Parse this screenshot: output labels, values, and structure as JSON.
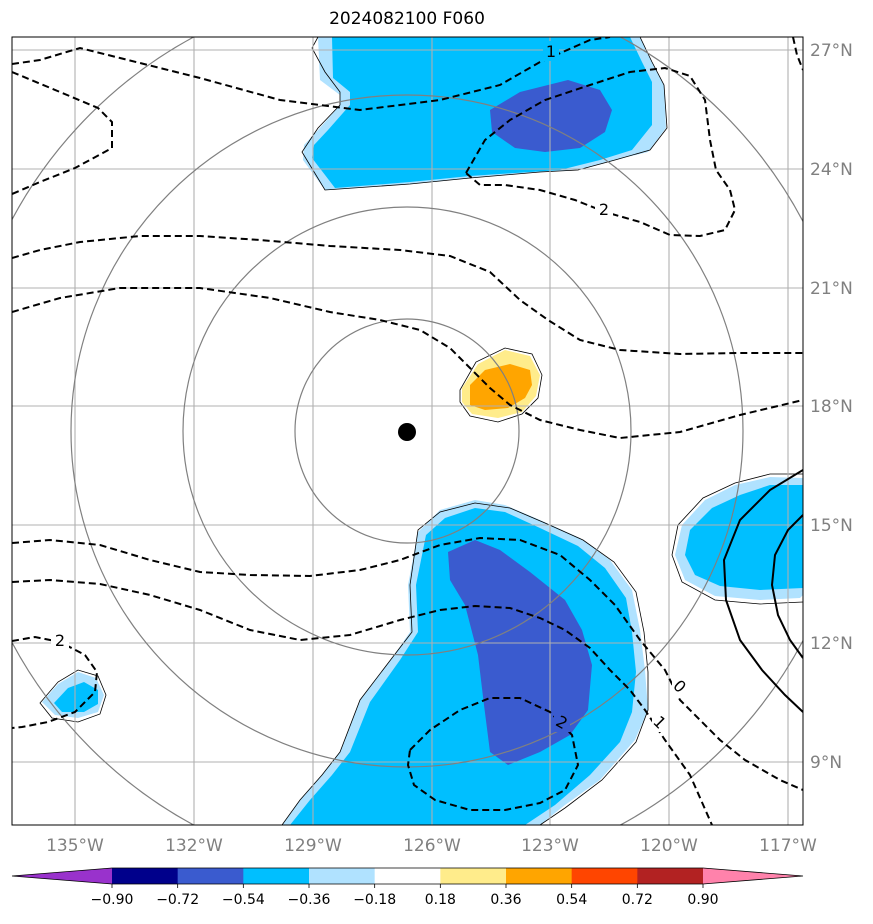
{
  "title": "2024082100 F060",
  "lon_labels": [
    "135°W",
    "132°W",
    "129°W",
    "126°W",
    "123°W",
    "120°W",
    "117°W"
  ],
  "lat_labels": [
    "27°N",
    "24°N",
    "21°N",
    "18°N",
    "15°N",
    "12°N",
    "9°N"
  ],
  "colorbar": {
    "labels": [
      "−0.90",
      "−0.72",
      "−0.54",
      "−0.36",
      "−0.18",
      "0.18",
      "0.36",
      "0.54",
      "0.72",
      "0.90"
    ],
    "colors": [
      "#9932cc",
      "#00008b",
      "#3a5bcf",
      "#00bfff",
      "#b0e2ff",
      "#ffffff",
      "#ffec8b",
      "#ffa500",
      "#ff4500",
      "#b22222",
      "#ff82ab"
    ]
  },
  "contour_labels": {
    "c1": "1",
    "c2": "2",
    "c3": "2",
    "c4": "0",
    "c5": "1",
    "c6": "2"
  },
  "colors": {
    "shade_light_blue": "#b0e2ff",
    "shade_blue": "#00bfff",
    "shade_dark_blue": "#3a5bcf",
    "shade_yellow": "#ffec8b",
    "shade_orange": "#ffa500",
    "grid": "#b0b0b0",
    "rings": "#808080"
  }
}
